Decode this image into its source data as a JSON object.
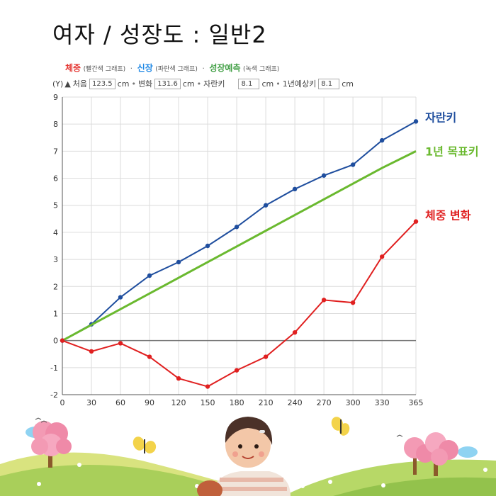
{
  "page": {
    "title": "여자 / 성장도 : 일반2"
  },
  "legend": {
    "weight_label": "체중",
    "weight_note": "(빨간색 그래프)",
    "height_label": "신장",
    "height_note": "(파란색 그래프)",
    "prediction_label": "성장예측",
    "prediction_note": "(녹색 그래프)",
    "separator": "·"
  },
  "controls": {
    "unit_y": "(Y)",
    "arrow": "▲",
    "initial_label": "처음",
    "initial_value": "123.5",
    "initial_unit": "cm",
    "change_label": "변화",
    "change_value": "131.6",
    "change_unit": "cm",
    "growth_label": "자란키",
    "growth_value": "8.1",
    "growth_unit": "cm",
    "predicted_label": "1년예상키",
    "predicted_value": "8.1",
    "predicted_unit": "cm",
    "bullet": "•"
  },
  "chart_data": {
    "type": "line",
    "x": [
      0,
      30,
      60,
      90,
      120,
      150,
      180,
      210,
      240,
      270,
      300,
      330,
      365
    ],
    "xticks": [
      "0",
      "30",
      "60",
      "90",
      "120",
      "150",
      "180",
      "210",
      "240",
      "270",
      "300",
      "330",
      "365"
    ],
    "yticks": [
      "-2",
      "-1",
      "0",
      "1",
      "2",
      "3",
      "4",
      "5",
      "6",
      "7",
      "8",
      "9"
    ],
    "ylim": [
      -2,
      9
    ],
    "xlim": [
      0,
      365
    ],
    "grid": true,
    "series": [
      {
        "name": "자란키",
        "color": "#1f4e9e",
        "markers": true,
        "values": [
          0,
          0.6,
          1.6,
          2.4,
          2.9,
          3.5,
          4.2,
          5.0,
          5.6,
          6.1,
          6.5,
          7.4,
          8.1
        ]
      },
      {
        "name": "1년 목표키",
        "color": "#6ab92f",
        "markers": false,
        "values": [
          0,
          0.58,
          1.16,
          1.74,
          2.32,
          2.9,
          3.48,
          4.06,
          4.64,
          5.22,
          5.8,
          6.38,
          7.0
        ]
      },
      {
        "name": "체중 변화",
        "color": "#e02020",
        "markers": true,
        "values": [
          0,
          -0.4,
          -0.1,
          -0.6,
          -1.4,
          -1.7,
          -1.1,
          -0.6,
          0.3,
          1.5,
          1.4,
          3.1,
          4.4
        ]
      }
    ]
  }
}
